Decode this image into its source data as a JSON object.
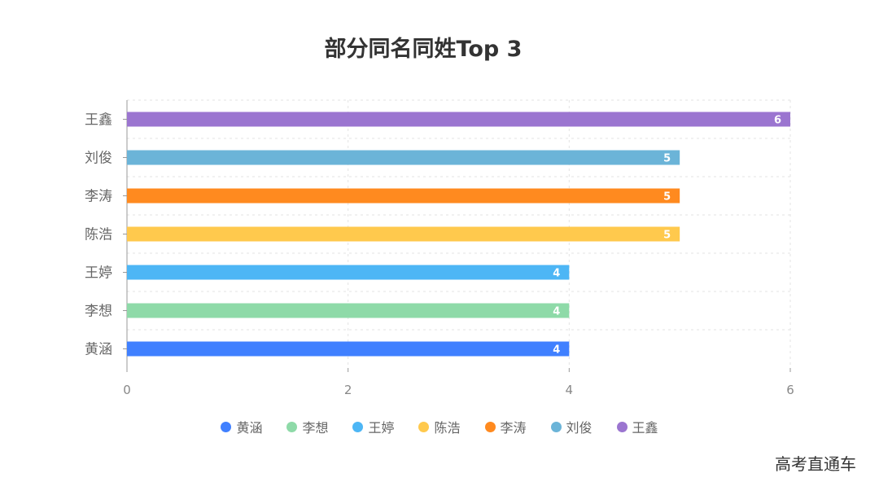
{
  "watermark": "高考直通车",
  "chart_data": {
    "type": "bar",
    "orientation": "horizontal",
    "title": "部分同名同姓Top 3",
    "xlabel": "",
    "ylabel": "",
    "categories": [
      "黄涵",
      "李想",
      "王婷",
      "陈浩",
      "李涛",
      "刘俊",
      "王鑫"
    ],
    "values": [
      4,
      4,
      4,
      5,
      5,
      5,
      6
    ],
    "colors": [
      "#4080ff",
      "#8edaa8",
      "#4db6f5",
      "#ffc94d",
      "#ff8a1f",
      "#6bb4d8",
      "#9b75d0"
    ],
    "xlim": [
      0,
      6
    ],
    "xticks": [
      "0",
      "2",
      "4",
      "6"
    ],
    "grid": true,
    "data_labels": true,
    "legend_position": "bottom"
  }
}
